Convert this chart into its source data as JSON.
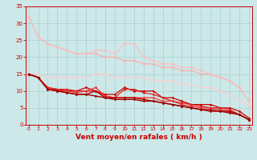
{
  "xlabel": "Vent moyen/en rafales ( km/h )",
  "x": [
    0,
    1,
    2,
    3,
    4,
    5,
    6,
    7,
    8,
    9,
    10,
    11,
    12,
    13,
    14,
    15,
    16,
    17,
    18,
    19,
    20,
    21,
    22,
    23
  ],
  "background_color": "#cce8e8",
  "grid_color": "#aad0d0",
  "series": [
    {
      "color": "#ffaaaa",
      "values": [
        32,
        26,
        24,
        23,
        22,
        21,
        21,
        21,
        20,
        20,
        19,
        19,
        18,
        18,
        17,
        17,
        16,
        16,
        15,
        15,
        14,
        13,
        11,
        7
      ],
      "marker": "D",
      "markersize": 1.8,
      "linewidth": 0.8
    },
    {
      "color": "#ffbbbb",
      "values": [
        32,
        26,
        24,
        23,
        22,
        21,
        21,
        22,
        22,
        21,
        24,
        24,
        20,
        19,
        18,
        18,
        17,
        17,
        16,
        15,
        14,
        13,
        11,
        7
      ],
      "marker": "D",
      "markersize": 1.8,
      "linewidth": 0.8
    },
    {
      "color": "#ffcccc",
      "values": [
        15,
        15,
        14,
        14,
        14,
        14,
        14,
        15,
        15,
        14,
        14,
        14,
        14,
        13,
        13,
        13,
        12,
        12,
        11,
        11,
        10,
        9,
        7,
        6
      ],
      "marker": "D",
      "markersize": 1.8,
      "linewidth": 0.8
    },
    {
      "color": "#cc0000",
      "values": [
        15,
        14,
        11,
        10.5,
        10,
        10,
        11,
        10,
        9,
        9,
        11,
        10,
        10,
        10,
        8,
        8,
        7,
        6,
        6,
        6,
        5,
        5,
        4,
        2
      ],
      "marker": "D",
      "markersize": 1.8,
      "linewidth": 0.9
    },
    {
      "color": "#dd2222",
      "values": [
        15,
        14,
        11,
        10.5,
        10.5,
        10,
        10,
        10,
        8.5,
        8,
        10.5,
        10.5,
        9.5,
        9,
        8,
        7,
        6.5,
        6,
        5.5,
        5,
        5,
        4.5,
        3,
        1.5
      ],
      "marker": "D",
      "markersize": 1.8,
      "linewidth": 0.9
    },
    {
      "color": "#ee3333",
      "values": [
        15,
        14,
        11,
        10,
        10,
        9.5,
        10,
        11,
        8.5,
        8,
        8,
        8,
        8,
        8,
        7,
        7,
        6,
        5.5,
        5,
        5,
        4.5,
        4,
        3,
        1.5
      ],
      "marker": "D",
      "markersize": 1.8,
      "linewidth": 0.9
    },
    {
      "color": "#bb0000",
      "values": [
        15,
        14,
        10.5,
        10,
        9.5,
        9,
        9,
        10,
        8,
        8,
        8,
        8,
        7.5,
        7,
        6.5,
        6,
        5.5,
        5,
        4.5,
        4.5,
        4,
        4,
        3,
        1.5
      ],
      "marker": "D",
      "markersize": 1.8,
      "linewidth": 1.0
    },
    {
      "color": "#990000",
      "values": [
        15,
        14,
        10.5,
        10,
        9.5,
        9,
        9,
        8.5,
        8,
        7.5,
        7.5,
        7.5,
        7,
        7,
        6.5,
        6,
        5.5,
        5,
        4.5,
        4,
        4,
        3.5,
        3,
        1.5
      ],
      "marker": "D",
      "markersize": 1.8,
      "linewidth": 1.0
    }
  ],
  "ylim": [
    0,
    35
  ],
  "yticks": [
    0,
    5,
    10,
    15,
    20,
    25,
    30,
    35
  ],
  "xticks": [
    0,
    1,
    2,
    3,
    4,
    5,
    6,
    7,
    8,
    9,
    10,
    11,
    12,
    13,
    14,
    15,
    16,
    17,
    18,
    19,
    20,
    21,
    22,
    23
  ],
  "tick_color": "#cc0000",
  "tick_fontsize": 4.5,
  "xlabel_fontsize": 6.5,
  "xlabel_color": "#cc0000",
  "ytick_fontsize": 5.0
}
